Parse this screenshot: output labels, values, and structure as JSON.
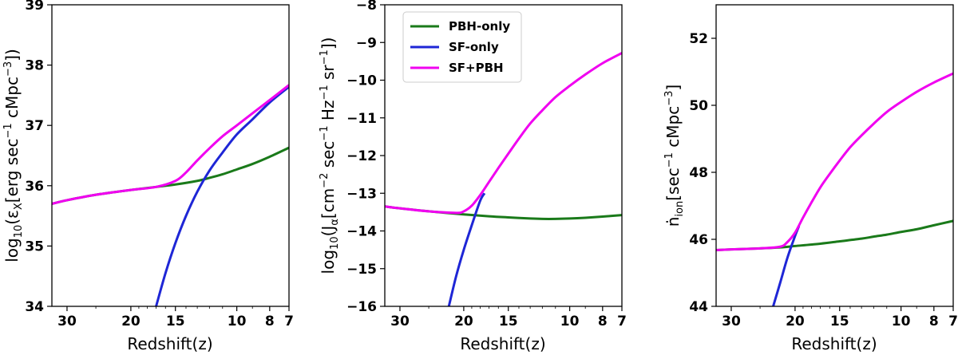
{
  "colors": {
    "pbh": "#1a7a1a",
    "sf": "#1e26d6",
    "sfpbh": "#f000f0",
    "axis": "#000000"
  },
  "legend": {
    "placement": "upper-left of middle panel",
    "entries": [
      {
        "label": "PBH-only",
        "color": "#1a7a1a"
      },
      {
        "label": "SF-only",
        "color": "#1e26d6"
      },
      {
        "label": "SF+PBH",
        "color": "#f000f0"
      }
    ]
  },
  "chart_data": [
    {
      "type": "line",
      "xlabel": "Redshift(z)",
      "ylabel": "log10(εX[erg sec⁻¹ cMpc⁻³])",
      "xscale": "log(1+z), inverted",
      "xlim": [
        33,
        7
      ],
      "ylim": [
        34,
        39
      ],
      "xticks": [
        30,
        20,
        15,
        10,
        8,
        7
      ],
      "yticks": [
        34,
        35,
        36,
        37,
        38,
        39
      ],
      "series": [
        {
          "name": "PBH-only",
          "color": "#1a7a1a",
          "x": [
            33,
            30,
            25,
            20,
            17,
            15,
            13,
            12,
            11,
            10,
            9,
            8,
            7
          ],
          "y": [
            35.7,
            35.76,
            35.85,
            35.93,
            35.98,
            36.02,
            36.08,
            36.13,
            36.19,
            36.27,
            36.36,
            36.48,
            36.63
          ]
        },
        {
          "name": "SF-only",
          "color": "#1e26d6",
          "x": [
            17,
            16,
            15,
            14,
            13,
            12,
            11,
            10,
            9,
            8,
            7
          ],
          "y": [
            34.0,
            34.55,
            35.05,
            35.5,
            35.9,
            36.25,
            36.55,
            36.85,
            37.1,
            37.38,
            37.64
          ]
        },
        {
          "name": "SF+PBH",
          "color": "#f000f0",
          "x": [
            33,
            30,
            25,
            20,
            17,
            15,
            14,
            13,
            12,
            11,
            10,
            9,
            8,
            7
          ],
          "y": [
            35.7,
            35.76,
            35.85,
            35.93,
            35.98,
            36.08,
            36.22,
            36.42,
            36.62,
            36.82,
            37.0,
            37.2,
            37.42,
            37.67
          ]
        }
      ]
    },
    {
      "type": "line",
      "xlabel": "Redshift(z)",
      "ylabel": "log10(Jα[cm⁻² sec⁻¹ Hz⁻¹ sr⁻¹])",
      "xscale": "log(1+z), inverted",
      "xlim": [
        33,
        7
      ],
      "ylim": [
        -16,
        -8
      ],
      "xticks": [
        30,
        20,
        15,
        10,
        8,
        7
      ],
      "yticks": [
        -16,
        -15,
        -14,
        -13,
        -12,
        -11,
        -10,
        -9,
        -8
      ],
      "series": [
        {
          "name": "PBH-only",
          "color": "#1a7a1a",
          "x": [
            33,
            30,
            25,
            20,
            17,
            15,
            13,
            12,
            11,
            10,
            9,
            8,
            7
          ],
          "y": [
            -13.35,
            -13.4,
            -13.48,
            -13.56,
            -13.61,
            -13.64,
            -13.67,
            -13.68,
            -13.68,
            -13.67,
            -13.65,
            -13.62,
            -13.58
          ]
        },
        {
          "name": "SF-only",
          "color": "#1e26d6",
          "x": [
            22,
            21,
            20,
            19,
            18,
            17.5
          ],
          "y": [
            -16.0,
            -15.2,
            -14.5,
            -13.85,
            -13.2,
            -13.0
          ]
        },
        {
          "name": "SF+PBH",
          "color": "#f000f0",
          "x": [
            33,
            30,
            25,
            21,
            20,
            19,
            18,
            17,
            16,
            15,
            14,
            13,
            12,
            11,
            10,
            9,
            8,
            7
          ],
          "y": [
            -13.35,
            -13.4,
            -13.48,
            -13.52,
            -13.48,
            -13.33,
            -13.05,
            -12.7,
            -12.33,
            -11.95,
            -11.55,
            -11.15,
            -10.8,
            -10.45,
            -10.15,
            -9.85,
            -9.55,
            -9.28
          ]
        }
      ]
    },
    {
      "type": "line",
      "xlabel": "Redshift(z)",
      "ylabel": "ṅion[sec⁻¹ cMpc⁻³]",
      "xscale": "log(1+z), inverted",
      "xlim": [
        33,
        7
      ],
      "ylim": [
        44,
        53
      ],
      "xticks": [
        30,
        20,
        15,
        10,
        8,
        7
      ],
      "yticks": [
        44,
        46,
        48,
        50,
        52
      ],
      "series": [
        {
          "name": "PBH-only",
          "color": "#1a7a1a",
          "x": [
            33,
            30,
            25,
            22,
            20,
            17,
            15,
            13,
            12,
            11,
            10,
            9,
            8,
            7
          ],
          "y": [
            45.68,
            45.7,
            45.73,
            45.76,
            45.8,
            45.87,
            45.94,
            46.02,
            46.08,
            46.14,
            46.22,
            46.3,
            46.42,
            46.55
          ]
        },
        {
          "name": "SF-only",
          "color": "#1e26d6",
          "x": [
            23,
            22,
            21,
            20,
            19.5
          ],
          "y": [
            44.0,
            44.7,
            45.45,
            46.1,
            46.4
          ]
        },
        {
          "name": "SF+PBH",
          "color": "#f000f0",
          "x": [
            33,
            30,
            25,
            22,
            21,
            20,
            19,
            18,
            17,
            16,
            15,
            14,
            13,
            12,
            11,
            10,
            9,
            8,
            7
          ],
          "y": [
            45.68,
            45.7,
            45.73,
            45.78,
            45.92,
            46.2,
            46.65,
            47.1,
            47.55,
            47.95,
            48.35,
            48.75,
            49.1,
            49.45,
            49.8,
            50.1,
            50.4,
            50.68,
            50.95
          ]
        }
      ]
    }
  ]
}
